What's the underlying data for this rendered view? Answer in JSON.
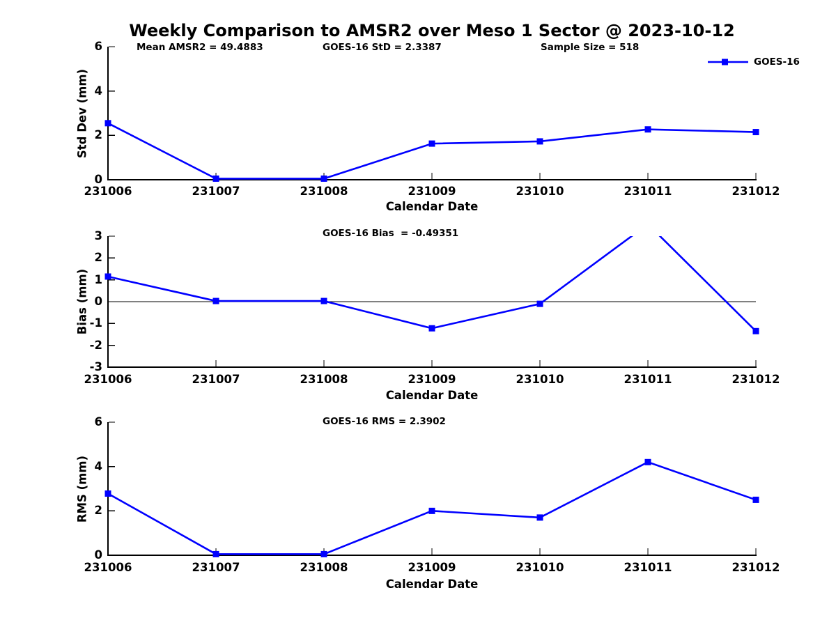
{
  "figure": {
    "title": "Weekly Comparison to AMSR2 over Meso 1 Sector @ 2023-10-12",
    "background_color": "#FFFFFF",
    "text_color": "#000000",
    "axis_color": "#000000"
  },
  "legend": {
    "label": "GOES-16",
    "color": "#0000FF",
    "marker": "square",
    "position": "top-right"
  },
  "chart_data": [
    {
      "type": "line",
      "xlabel": "Calendar Date",
      "ylabel": "Std Dev (mm)",
      "categories": [
        "231006",
        "231007",
        "231008",
        "231009",
        "231010",
        "231011",
        "231012"
      ],
      "series": [
        {
          "name": "GOES-16",
          "color": "#0000FF",
          "marker": "square",
          "values": [
            2.55,
            0.05,
            0.05,
            1.63,
            1.73,
            2.27,
            2.15
          ]
        }
      ],
      "ylim": [
        0,
        6
      ],
      "yticks": [
        0,
        2,
        4,
        6
      ],
      "annotations": [
        "Mean AMSR2 = 49.4883",
        "GOES-16 StD = 2.3387",
        "Sample Size = 518"
      ],
      "zero_line": false,
      "grid": false
    },
    {
      "type": "line",
      "xlabel": "Calendar Date",
      "ylabel": "Bias (mm)",
      "categories": [
        "231006",
        "231007",
        "231008",
        "231009",
        "231010",
        "231011",
        "231012"
      ],
      "series": [
        {
          "name": "GOES-16",
          "color": "#0000FF",
          "marker": "square",
          "values": [
            1.15,
            0.03,
            0.03,
            -1.22,
            -0.1,
            3.55,
            -1.35
          ]
        }
      ],
      "ylim": [
        -3,
        3
      ],
      "yticks": [
        -3,
        -2,
        -1,
        0,
        1,
        2,
        3
      ],
      "annotations": [
        "GOES-16 Bias  = -0.49351"
      ],
      "zero_line": true,
      "grid": false,
      "note": "peak at 231011 exceeds axis max and is clipped at y=3"
    },
    {
      "type": "line",
      "xlabel": "Calendar Date",
      "ylabel": "RMS (mm)",
      "categories": [
        "231006",
        "231007",
        "231008",
        "231009",
        "231010",
        "231011",
        "231012"
      ],
      "series": [
        {
          "name": "GOES-16",
          "color": "#0000FF",
          "marker": "square",
          "values": [
            2.78,
            0.05,
            0.05,
            2.0,
            1.7,
            4.2,
            2.5
          ]
        }
      ],
      "ylim": [
        0,
        6
      ],
      "yticks": [
        0,
        2,
        4,
        6
      ],
      "annotations": [
        "GOES-16 RMS = 2.3902"
      ],
      "zero_line": false,
      "grid": false
    }
  ]
}
